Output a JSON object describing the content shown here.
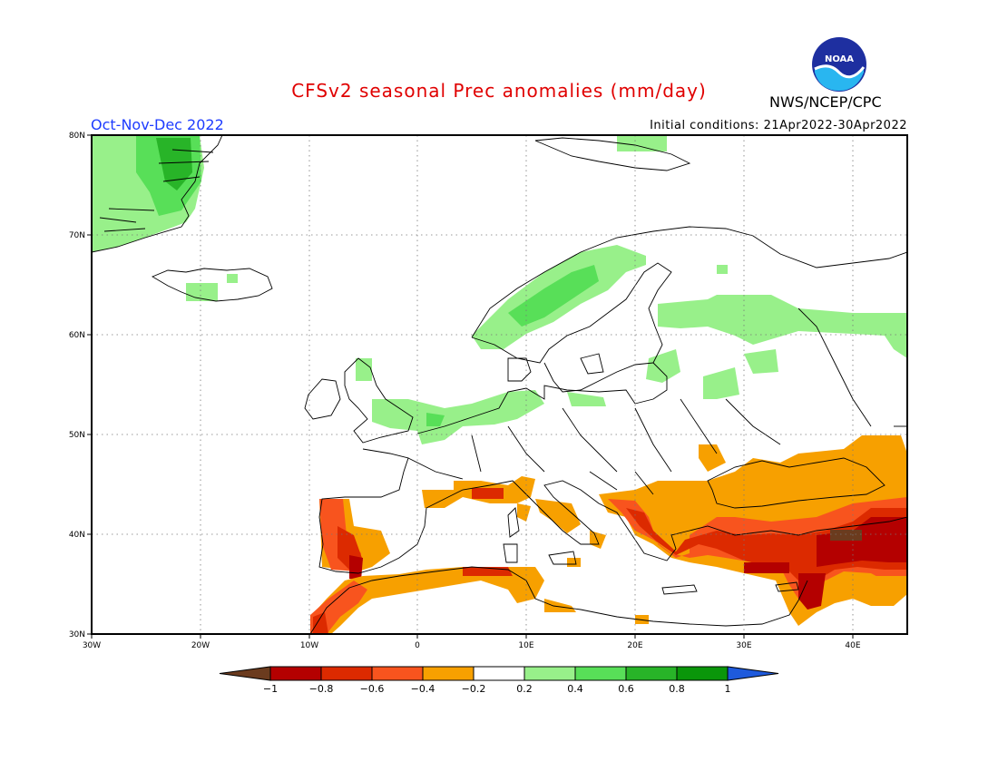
{
  "header": {
    "title": "CFSv2 seasonal Prec anomalies (mm/day)",
    "period": "Oct-Nov-Dec 2022",
    "initial_conditions": "Initial conditions: 21Apr2022-30Apr2022",
    "agency": "NWS/NCEP/CPC"
  },
  "logo": {
    "text": "NOAA",
    "icon": "noaa-logo-icon"
  },
  "map": {
    "lon_labels": [
      "30W",
      "20W",
      "10W",
      "0",
      "10E",
      "20E",
      "30E",
      "40E"
    ],
    "lat_labels": [
      "80N",
      "70N",
      "60N",
      "50N",
      "40N",
      "30N"
    ]
  },
  "colorbar": {
    "labels": [
      "-1",
      "-0.8",
      "-0.6",
      "-0.4",
      "-0.2",
      "0.2",
      "0.4",
      "0.6",
      "0.8",
      "1"
    ],
    "colors": [
      "#6b3b1e",
      "#b40000",
      "#dc2a00",
      "#f8541e",
      "#f7a000",
      "#ffffff",
      "#98f08a",
      "#58df58",
      "#28b428",
      "#0a960a",
      "#1e5adc"
    ]
  }
}
